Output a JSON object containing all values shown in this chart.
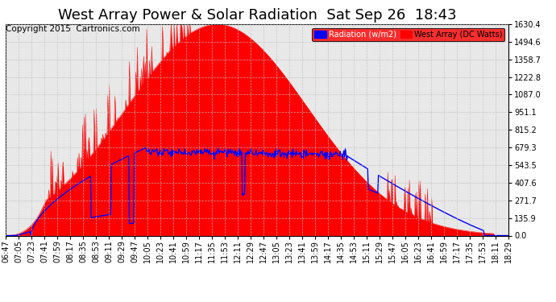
{
  "title": "West Array Power & Solar Radiation  Sat Sep 26  18:43",
  "copyright": "Copyright 2015  Cartronics.com",
  "legend_radiation": "Radiation (w/m2)",
  "legend_west": "West Array (DC Watts)",
  "legend_radiation_bg": "#0000ff",
  "legend_west_bg": "#ff0000",
  "ymin": 0.0,
  "ymax": 1630.4,
  "yticks": [
    0.0,
    135.9,
    271.7,
    407.6,
    543.5,
    679.3,
    815.2,
    951.1,
    1087.0,
    1222.8,
    1358.7,
    1494.6,
    1630.4
  ],
  "background_color": "#ffffff",
  "plot_bg": "#f0f0f0",
  "grid_color": "#c0c0c0",
  "red_fill_color": "#ff0000",
  "blue_line_color": "#0000ff",
  "x_tick_labels": [
    "06:47",
    "07:05",
    "07:23",
    "07:41",
    "07:59",
    "08:17",
    "08:35",
    "08:53",
    "09:11",
    "09:29",
    "09:47",
    "10:05",
    "10:23",
    "10:41",
    "10:59",
    "11:17",
    "11:35",
    "11:53",
    "12:11",
    "12:29",
    "12:47",
    "13:05",
    "13:23",
    "13:41",
    "13:59",
    "14:17",
    "14:35",
    "14:53",
    "15:11",
    "15:29",
    "15:47",
    "16:05",
    "16:23",
    "16:41",
    "16:59",
    "17:17",
    "17:35",
    "17:53",
    "18:11",
    "18:29"
  ],
  "title_fontsize": 13,
  "axis_fontsize": 7,
  "copyright_fontsize": 7.5
}
